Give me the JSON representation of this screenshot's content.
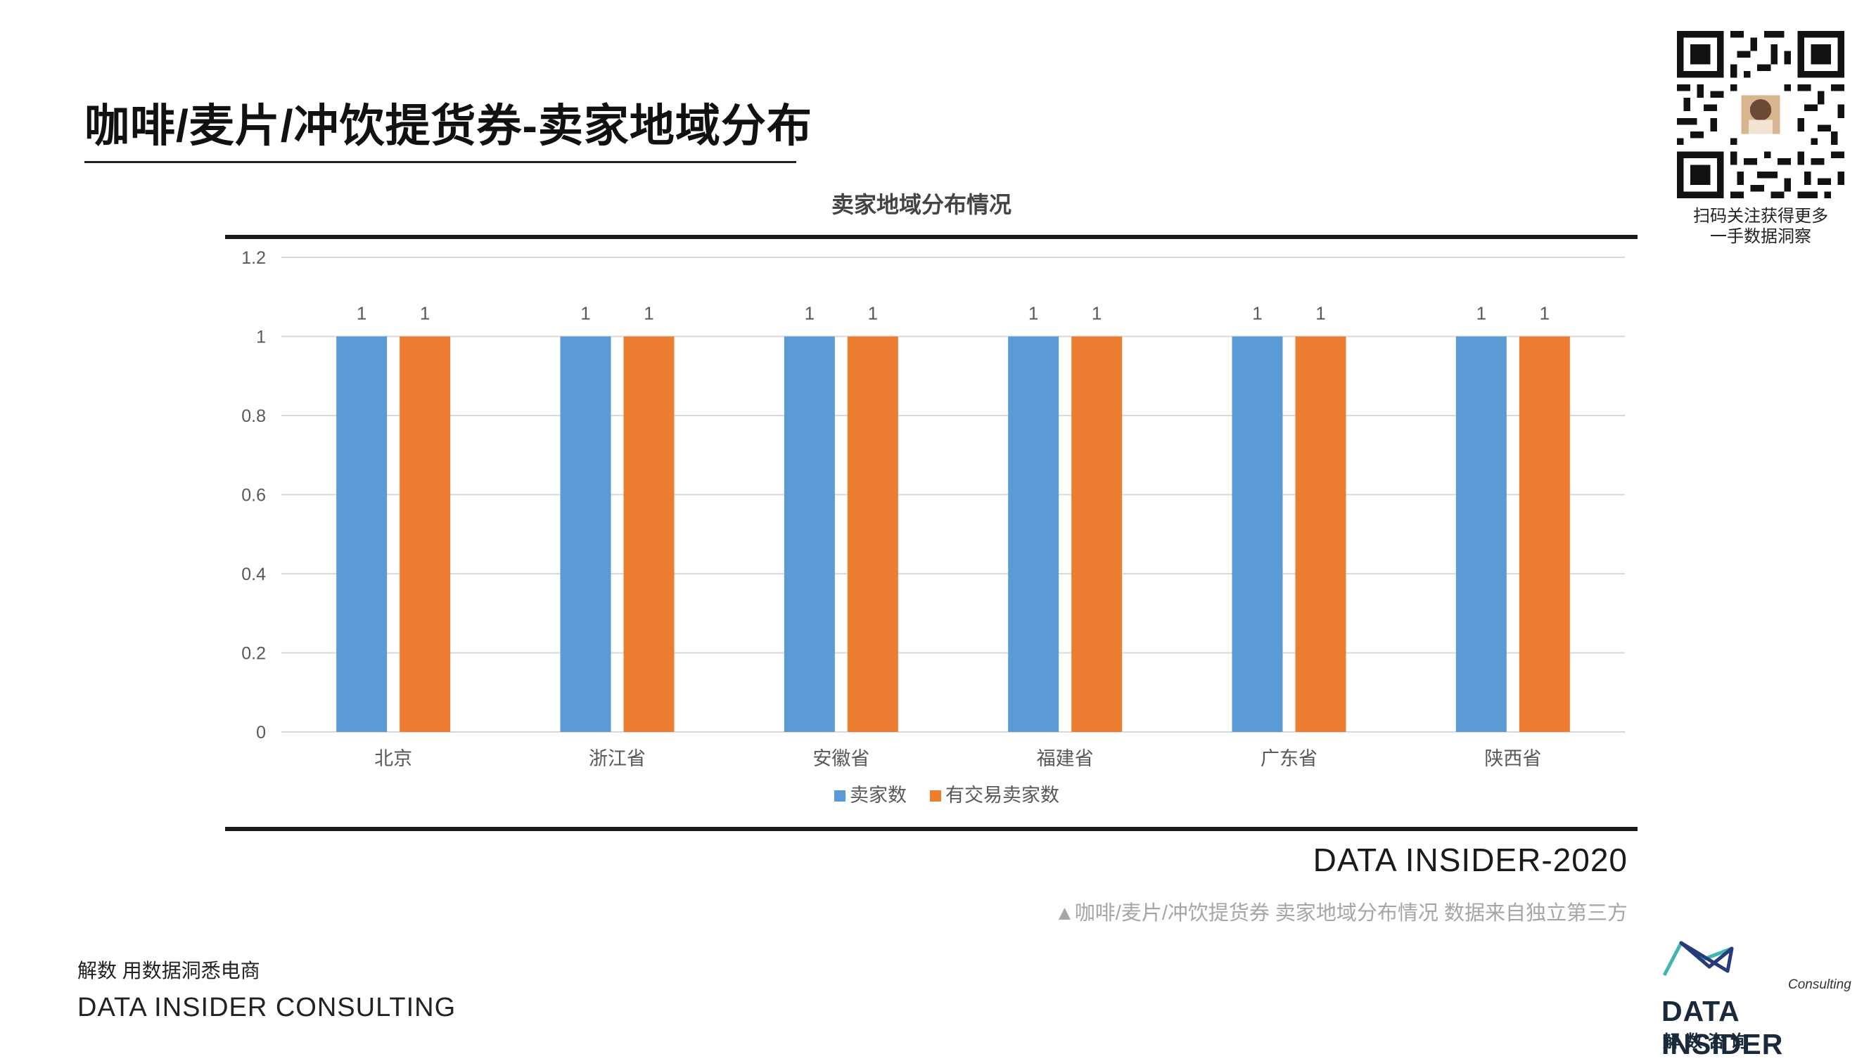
{
  "page": {
    "title": "咖啡/麦片/冲饮提货券-卖家地域分布",
    "qr_caption_line1": "扫码关注获得更多",
    "qr_caption_line2": "一手数据洞察",
    "brand_year": "DATA INSIDER-2020",
    "source_note": "▲咖啡/麦片/冲饮提货券 卖家地域分布情况 数据来自独立第三方",
    "slogan": "解数 用数据洞悉电商",
    "company": "DATA INSIDER CONSULTING"
  },
  "logo": {
    "consulting": "Consulting",
    "wordmark": "DATA INSIDER",
    "cn": "解数咨询"
  },
  "colors": {
    "series1": "#5b9bd5",
    "series2": "#ed7d31",
    "grid": "#d9d9d9",
    "axis_text": "#595959",
    "logo_cyan": "#3fb7b0",
    "logo_navy": "#283a78"
  },
  "chart_data": {
    "type": "bar",
    "title": "卖家地域分布情况",
    "categories": [
      "北京",
      "浙江省",
      "安徽省",
      "福建省",
      "广东省",
      "陕西省"
    ],
    "series": [
      {
        "name": "卖家数",
        "values": [
          1,
          1,
          1,
          1,
          1,
          1
        ]
      },
      {
        "name": "有交易卖家数",
        "values": [
          1,
          1,
          1,
          1,
          1,
          1
        ]
      }
    ],
    "y_ticks": [
      "0",
      "0.2",
      "0.4",
      "0.6",
      "0.8",
      "1",
      "1.2"
    ],
    "ylim": [
      0,
      1.2
    ],
    "data_labels": true,
    "grid": true,
    "legend_position": "bottom",
    "xlabel": "",
    "ylabel": ""
  }
}
